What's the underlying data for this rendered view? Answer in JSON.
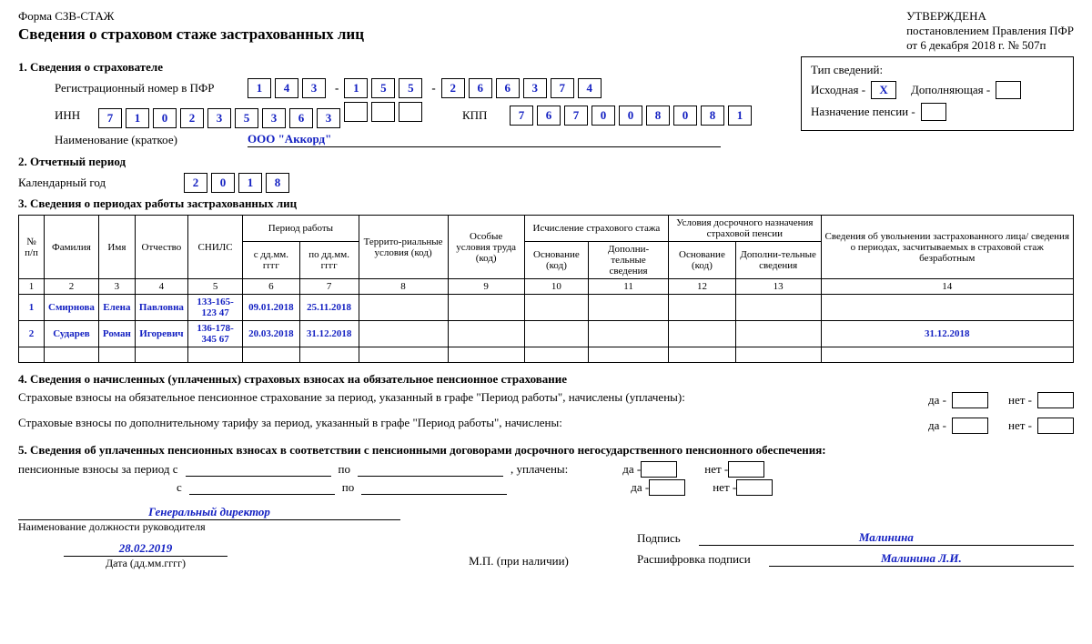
{
  "header": {
    "form_code": "Форма СЗВ-СТАЖ",
    "title": "Сведения о страховом стаже застрахованных лиц",
    "approved_line1": "УТВЕРЖДЕНА",
    "approved_line2": "постановлением Правления ПФР",
    "approved_line3": "от 6 декабря 2018 г. № 507п"
  },
  "section1": {
    "heading": "1. Сведения о страхователе",
    "reg_label": "Регистрационный номер в ПФР",
    "reg_p1": [
      "1",
      "4",
      "3"
    ],
    "reg_p2": [
      "1",
      "5",
      "5"
    ],
    "reg_p3": [
      "2",
      "6",
      "6",
      "3",
      "7",
      "4"
    ],
    "inn_label": "ИНН",
    "inn": [
      "7",
      "1",
      "0",
      "2",
      "3",
      "5",
      "3",
      "6",
      "3",
      "",
      "",
      ""
    ],
    "kpp_label": "КПП",
    "kpp": [
      "7",
      "6",
      "7",
      "0",
      "0",
      "8",
      "0",
      "8",
      "1"
    ],
    "name_label": "Наименование (краткое)",
    "name_value": "ООО \"Аккорд\""
  },
  "typebox": {
    "heading": "Тип сведений:",
    "initial_label": "Исходная -",
    "initial_value": "X",
    "supplement_label": "Дополняющая -",
    "supplement_value": "",
    "pension_label": "Назначение пенсии -",
    "pension_value": ""
  },
  "section2": {
    "heading": "2. Отчетный период",
    "year_label": "Календарный год",
    "year": [
      "2",
      "0",
      "1",
      "8"
    ]
  },
  "section3": {
    "heading": "3. Сведения о периодах работы застрахованных лиц",
    "cols": {
      "num": "№ п/п",
      "surname": "Фамилия",
      "name": "Имя",
      "patronymic": "Отчество",
      "snils": "СНИЛС",
      "period": "Период работы",
      "from": "с дд.мм. гггг",
      "to": "по дд.мм. гггг",
      "territory": "Террито-риальные условия (код)",
      "special": "Особые условия труда (код)",
      "calc": "Исчисление страхового стажа",
      "early": "Условия досрочного назначения страховой пенсии",
      "basis": "Основание (код)",
      "additional": "Дополни-тельные сведения",
      "dismissal": "Сведения об увольнении застрахованного лица/ сведения о периодах, засчитываемых в страховой стаж безработным"
    },
    "colnums": [
      "1",
      "2",
      "3",
      "4",
      "5",
      "6",
      "7",
      "8",
      "9",
      "10",
      "11",
      "12",
      "13",
      "14"
    ],
    "rows": [
      {
        "num": "1",
        "surname": "Смирнова",
        "name": "Елена",
        "patronymic": "Павловна",
        "snils": "133-165-123 47",
        "from": "09.01.2018",
        "to": "25.11.2018",
        "c8": "",
        "c9": "",
        "c10": "",
        "c11": "",
        "c12": "",
        "c13": "",
        "c14": ""
      },
      {
        "num": "2",
        "surname": "Сударев",
        "name": "Роман",
        "patronymic": "Игоревич",
        "snils": "136-178-345 67",
        "from": "20.03.2018",
        "to": "31.12.2018",
        "c8": "",
        "c9": "",
        "c10": "",
        "c11": "",
        "c12": "",
        "c13": "",
        "c14": "31.12.2018"
      }
    ]
  },
  "section4": {
    "heading": "4. Сведения о начисленных (уплаченных) страховых взносах на обязательное пенсионное страхование",
    "line1": "Страховые взносы на обязательное пенсионное страхование за период, указанный в графе \"Период работы\", начислены (уплачены):",
    "line2": "Страховые взносы по дополнительному тарифу за период, указанный в графе \"Период работы\", начислены:",
    "yes": "да -",
    "no": "нет -"
  },
  "section5": {
    "heading": "5. Сведения об уплаченных пенсионных взносах в соответствии с пенсионными договорами досрочного негосударственного пенсионного обеспечения:",
    "label_from": "пенсионные взносы за период с",
    "label_to": "по",
    "label_only_from": "с",
    "label_paid": ", уплачены:",
    "yes": "да -",
    "no": "нет -"
  },
  "signatures": {
    "position_value": "Генеральный директор",
    "position_label": "Наименование должности руководителя",
    "date_value": "28.02.2019",
    "date_label": "Дата (дд.мм.гггг)",
    "mp": "М.П. (при наличии)",
    "sign_label": "Подпись",
    "sign_value": "Малинина",
    "decode_label": "Расшифровка подписи",
    "decode_value": "Малинина Л.И."
  }
}
